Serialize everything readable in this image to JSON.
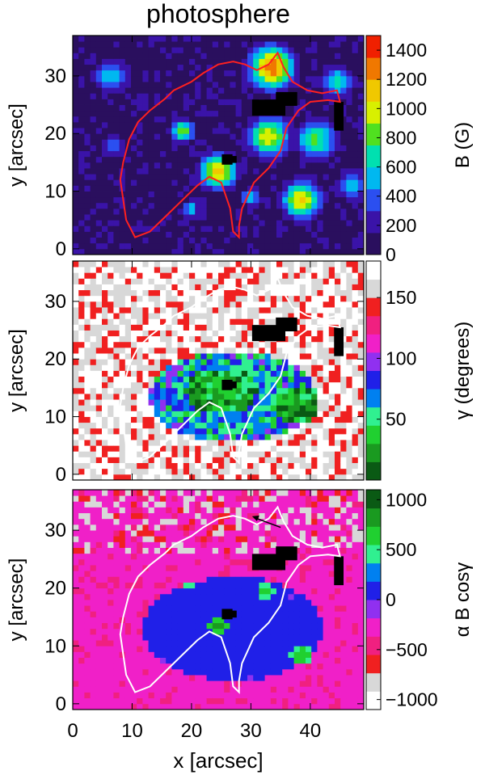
{
  "figure": {
    "title": "photosphere",
    "x_axis_label": "x [arcsec]",
    "x_ticks": [
      0,
      10,
      20,
      30,
      40
    ],
    "x_range": [
      0,
      49
    ],
    "y_axis_label": "y [arcsec]",
    "y_ticks": [
      0,
      10,
      20,
      30
    ],
    "y_range": [
      -1,
      37
    ]
  },
  "chart_data": [
    {
      "type": "heatmap",
      "title": "photosphere",
      "xlabel": "",
      "ylabel": "y [arcsec]",
      "xlim": [
        0,
        49
      ],
      "ylim": [
        -1,
        37
      ],
      "colorbar": {
        "label": "B (G)",
        "range": [
          0,
          1500
        ],
        "ticks": [
          0,
          200,
          400,
          600,
          800,
          1000,
          1200,
          1400
        ],
        "colors": [
          "#2a0f5e",
          "#3a13a8",
          "#2b4ff0",
          "#00b8f0",
          "#00e0b0",
          "#50e020",
          "#d8f000",
          "#f0c800",
          "#f07800",
          "#f02000"
        ]
      },
      "background_color": "#30205a",
      "blobs": [
        {
          "x": 33.5,
          "y": 31.5,
          "r": 3.2,
          "value": 1350
        },
        {
          "x": 24.5,
          "y": 13.5,
          "r": 2.6,
          "value": 1150
        },
        {
          "x": 38.5,
          "y": 8.5,
          "r": 2.8,
          "value": 1100
        },
        {
          "x": 33.0,
          "y": 19.5,
          "r": 3.0,
          "value": 1050
        },
        {
          "x": 18.5,
          "y": 20.5,
          "r": 1.8,
          "value": 850
        },
        {
          "x": 6.5,
          "y": 30.0,
          "r": 2.6,
          "value": 600
        },
        {
          "x": 7.0,
          "y": 18.0,
          "r": 1.5,
          "value": 500
        },
        {
          "x": 41.0,
          "y": 19.0,
          "r": 3.0,
          "value": 800
        },
        {
          "x": 47.0,
          "y": 11.0,
          "r": 2.2,
          "value": 650
        },
        {
          "x": 20.0,
          "y": 7.0,
          "r": 1.5,
          "value": 500
        },
        {
          "x": 44.5,
          "y": 29.0,
          "r": 2.4,
          "value": 700
        },
        {
          "x": 30.0,
          "y": 9.0,
          "r": 1.6,
          "value": 500
        }
      ],
      "contour_color": "#ff2020"
    },
    {
      "type": "heatmap",
      "xlabel": "",
      "ylabel": "y [arcsec]",
      "xlim": [
        0,
        49
      ],
      "ylim": [
        -1,
        37
      ],
      "colorbar": {
        "label": "γ (degrees)",
        "range": [
          0,
          180
        ],
        "ticks": [
          50,
          100,
          150
        ],
        "colors": [
          "#0a5a14",
          "#1a9a20",
          "#20d030",
          "#30f090",
          "#0080f0",
          "#2020e8",
          "#9030f0",
          "#f020c8",
          "#f02080",
          "#f02020",
          "#d8d8d8",
          "#ffffff"
        ]
      },
      "background_color": "#f02a2a",
      "regions": [
        {
          "x": 27.0,
          "y": 13.5,
          "rx": 14.0,
          "ry": 8.0,
          "value": 65
        },
        {
          "x": 25.0,
          "y": 14.5,
          "rx": 6.0,
          "ry": 4.0,
          "value": 30
        },
        {
          "x": 37.5,
          "y": 12.0,
          "rx": 4.0,
          "ry": 3.0,
          "value": 25
        }
      ],
      "contour_color": "#ffffff"
    },
    {
      "type": "heatmap",
      "xlabel": "x [arcsec]",
      "ylabel": "y [arcsec]",
      "xlim": [
        0,
        49
      ],
      "ylim": [
        -1,
        37
      ],
      "colorbar": {
        "label": "α B cosγ",
        "range": [
          -1100,
          1100
        ],
        "ticks": [
          -1000,
          -500,
          0,
          500,
          1000
        ],
        "colors": [
          "#ffffff",
          "#d8d8d8",
          "#f02020",
          "#f02080",
          "#f020c8",
          "#9030f0",
          "#2020e8",
          "#0080f0",
          "#30f090",
          "#20d030",
          "#1a9a20",
          "#0a5a14"
        ]
      },
      "background_color": "#f050c0",
      "regions": [
        {
          "x": 27.0,
          "y": 13.0,
          "rx": 15.0,
          "ry": 9.0,
          "value": 50
        },
        {
          "x": 24.5,
          "y": 13.5,
          "rx": 1.6,
          "ry": 1.6,
          "value": 750
        },
        {
          "x": 38.5,
          "y": 8.5,
          "rx": 1.8,
          "ry": 1.6,
          "value": 700
        },
        {
          "x": 32.5,
          "y": 19.5,
          "rx": 1.5,
          "ry": 1.2,
          "value": 600
        },
        {
          "x": 19.5,
          "y": 20.5,
          "rx": 1.2,
          "ry": 1.0,
          "value": 500
        }
      ],
      "contour_color": "#ffffff"
    }
  ]
}
